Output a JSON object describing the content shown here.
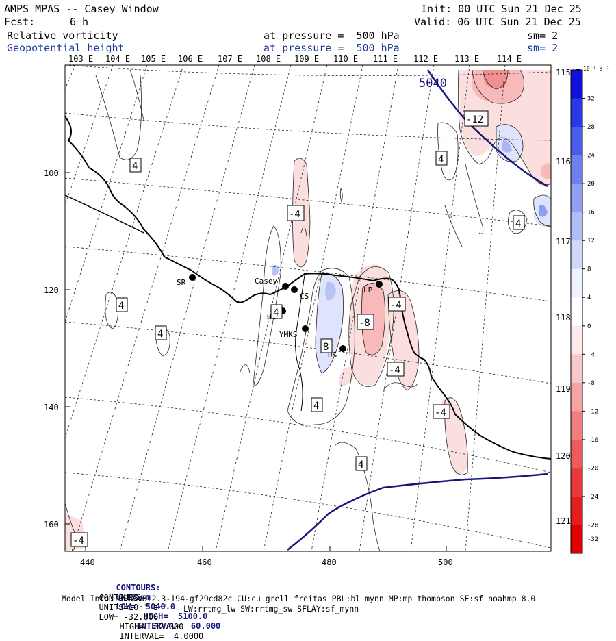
{
  "header": {
    "model_title": "AMPS MPAS -- Casey Window",
    "init_label": "Init: 00 UTC Sun 21 Dec 25",
    "fcst_label": "Fcst:",
    "fcst_value": "6 h",
    "valid_label": "Valid: 06 UTC Sun 21 Dec 25",
    "field1_name": "Relative vorticity",
    "field1_level": "at pressure =  500 hPa",
    "field1_sm": "sm= 2",
    "field2_name": "Geopotential height",
    "field2_level": "at pressure =  500 hPa",
    "field2_sm": "sm= 2"
  },
  "map": {
    "lon_labels_top": [
      "103 E",
      "104 E",
      "105 E",
      "106 E",
      "107 E",
      "108 E",
      "109 E",
      "110 E",
      "111 E",
      "112 E",
      "113 E",
      "114 E"
    ],
    "lat_labels_right": [
      "115 E",
      "116 E",
      "117 E",
      "118 E",
      "119 E",
      "120 E",
      "121 E"
    ],
    "x_ticks": [
      "440",
      "460",
      "480",
      "500"
    ],
    "y_ticks": [
      "100",
      "120",
      "140",
      "160"
    ],
    "height_contour_label": "5040",
    "contour_labels": [
      "4",
      "4",
      "4",
      "4",
      "4",
      "4",
      "4",
      "4",
      "-4",
      "-4",
      "-4",
      "-4",
      "-4",
      "-8",
      "8",
      "-12"
    ],
    "stations": [
      {
        "name": "SR"
      },
      {
        "name": "Casey"
      },
      {
        "name": "CS"
      },
      {
        "name": "HN"
      },
      {
        "name": "YMKS"
      },
      {
        "name": "DS"
      },
      {
        "name": "LP"
      }
    ]
  },
  "colorbar": {
    "units": "10⁻⁵ s⁻¹",
    "ticks": [
      "32",
      "28",
      "24",
      "20",
      "16",
      "12",
      "8",
      "4",
      "0",
      "-4",
      "-8",
      "-12",
      "-16",
      "-20",
      "-24",
      "-28",
      "-32"
    ],
    "colors": [
      "#1010e0",
      "#2a38e6",
      "#4a5cea",
      "#6e80ee",
      "#909ff2",
      "#b0bdf6",
      "#cfd7fa",
      "#eef1fe",
      "#ffffff",
      "#fdeaea",
      "#f9c8c8",
      "#f5a4a4",
      "#f17e7e",
      "#ec5a5a",
      "#e83a3a",
      "#e41e1e",
      "#e00000"
    ]
  },
  "footer": {
    "line1_label": "CONTOURS:",
    "line1_units": "UNITS=m",
    "line1_low": "LOW=  5040.0",
    "line1_high": "HIGH=  5100.0",
    "line1_interval": "INTERVAL=  60.000",
    "line2_label": "CONTOURS:",
    "line2_units": "UNITS=10⁻⁵ s⁻¹",
    "line2_low": "LOW= -32.000",
    "line2_high": "HIGH=  32.000",
    "line2_interval": "INTERVAL=  4.0000",
    "model_info": "Model Info: MPASv8.2.3-194-gf29cd82c CU:cu_grell_freitas PBL:bl_mynn MP:mp_thompson SF:sf_noahmp 8.0",
    "model_info2": "LW:rrtmg_lw SW:rrtmg_sw SFLAY:sf_mynn"
  }
}
